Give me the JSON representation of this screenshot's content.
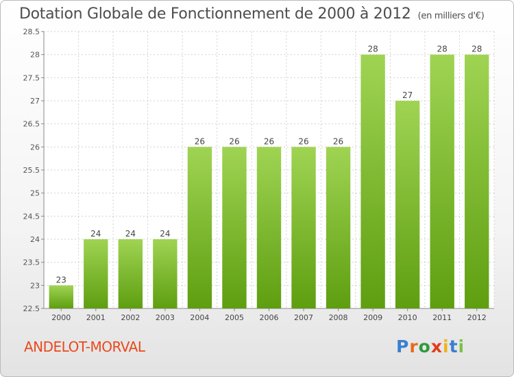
{
  "title": "Dotation Globale de Fonctionnement de 2000 à 2012",
  "unit_note": "(en milliers d'€)",
  "place_name": "ANDELOT-MORVAL",
  "logo_text": "Proxiti",
  "colors": {
    "bar_top": "#9fd453",
    "bar_bottom": "#5e9e10",
    "title": "#4d4d4d",
    "place": "#e8491d"
  },
  "chart_data": {
    "type": "bar",
    "categories": [
      "2000",
      "2001",
      "2002",
      "2003",
      "2004",
      "2005",
      "2006",
      "2007",
      "2008",
      "2009",
      "2010",
      "2011",
      "2012"
    ],
    "values": [
      23,
      24,
      24,
      24,
      26,
      26,
      26,
      26,
      26,
      28,
      27,
      28,
      28
    ],
    "data_labels": [
      "23",
      "24",
      "24",
      "24",
      "26",
      "26",
      "26",
      "26",
      "26",
      "28",
      "27",
      "28",
      "28"
    ],
    "y_ticks": [
      "22.5",
      "23",
      "23.5",
      "24",
      "24.5",
      "25",
      "25.5",
      "26",
      "26.5",
      "27",
      "27.5",
      "28",
      "28.5"
    ],
    "ylim": [
      22.5,
      28.5
    ],
    "grid": true,
    "xlabel": "",
    "ylabel": ""
  }
}
